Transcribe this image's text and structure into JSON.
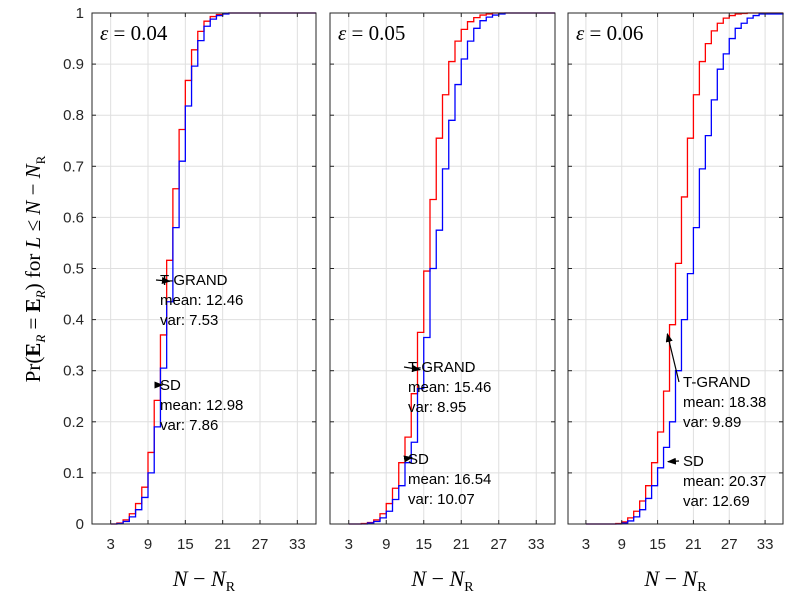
{
  "chart_data": {
    "type": "line",
    "step": true,
    "ylabel": "Pr(Ê_R̄ = E_R̄) for L ≤ N − N_R",
    "ylabel_parts": {
      "pr": "Pr(",
      "E": "E",
      "eq": " = ",
      "close": ")",
      "for": " for ",
      "L": "L",
      "leq": " ≤ ",
      "N": "N",
      "minus": " − ",
      "sub_R": "R",
      "sub_Rbar": "R"
    },
    "xlabel_parts": {
      "N": "N",
      "minus": " − ",
      "Nsym": "N",
      "sub": "R"
    },
    "y_ticks": [
      "0",
      "0.1",
      "0.2",
      "0.3",
      "0.4",
      "0.5",
      "0.6",
      "0.7",
      "0.8",
      "0.9",
      "1"
    ],
    "x_ticks": [
      "3",
      "9",
      "15",
      "21",
      "27",
      "33"
    ],
    "xlim": [
      0,
      36
    ],
    "ylim": [
      0,
      1
    ],
    "grid": true,
    "colors": {
      "tgrand": "#ff0000",
      "sd": "#0000ff",
      "axis": "#262626",
      "grid": "#dfdfdf"
    },
    "panels": [
      {
        "title": "ε = 0.04",
        "eps_symbol": "ε",
        "eps_value": " = 0.04",
        "series": [
          {
            "name": "T-GRAND",
            "color": "#ff0000",
            "x": [
              3,
              4,
              5,
              6,
              7,
              8,
              9,
              10,
              11,
              12,
              13,
              14,
              15,
              16,
              17,
              18,
              19,
              20,
              21,
              22,
              23,
              24,
              25,
              36
            ],
            "y": [
              0,
              0.002,
              0.008,
              0.02,
              0.04,
              0.072,
              0.14,
              0.242,
              0.37,
              0.516,
              0.656,
              0.772,
              0.868,
              0.928,
              0.964,
              0.984,
              0.993,
              0.997,
              0.999,
              1,
              1,
              1,
              1,
              1
            ]
          },
          {
            "name": "SD",
            "color": "#0000ff",
            "x": [
              3,
              4,
              5,
              6,
              7,
              8,
              9,
              10,
              11,
              12,
              13,
              14,
              15,
              16,
              17,
              18,
              19,
              20,
              21,
              22,
              23,
              24,
              25,
              36
            ],
            "y": [
              0,
              0.001,
              0.005,
              0.014,
              0.028,
              0.052,
              0.1,
              0.19,
              0.305,
              0.435,
              0.58,
              0.71,
              0.818,
              0.896,
              0.946,
              0.974,
              0.988,
              0.995,
              0.998,
              1,
              1,
              1,
              1,
              1
            ]
          }
        ],
        "annotations": [
          {
            "name": "T-GRAND",
            "lines": [
              "T-GRAND",
              "mean: 12.46",
              "var: 7.53"
            ],
            "point": [
              12.2,
              0.475
            ]
          },
          {
            "name": "SD",
            "lines": [
              "SD",
              "mean: 12.98",
              "var: 7.86"
            ],
            "point": [
              11.0,
              0.272
            ]
          }
        ]
      },
      {
        "title": "ε = 0.05",
        "eps_symbol": "ε",
        "eps_value": " = 0.05",
        "series": [
          {
            "name": "T-GRAND",
            "color": "#ff0000",
            "x": [
              3,
              4,
              5,
              6,
              7,
              8,
              9,
              10,
              11,
              12,
              13,
              14,
              15,
              16,
              17,
              18,
              19,
              20,
              21,
              22,
              23,
              24,
              25,
              26,
              27,
              28,
              36
            ],
            "y": [
              0,
              0,
              0.001,
              0.003,
              0.008,
              0.02,
              0.04,
              0.07,
              0.12,
              0.17,
              0.255,
              0.375,
              0.495,
              0.635,
              0.755,
              0.84,
              0.905,
              0.945,
              0.968,
              0.983,
              0.991,
              0.996,
              0.998,
              1,
              1,
              1,
              1
            ]
          },
          {
            "name": "SD",
            "color": "#0000ff",
            "x": [
              3,
              4,
              5,
              6,
              7,
              8,
              9,
              10,
              11,
              12,
              13,
              14,
              15,
              16,
              17,
              18,
              19,
              20,
              21,
              22,
              23,
              24,
              25,
              26,
              27,
              28,
              36
            ],
            "y": [
              0,
              0,
              0,
              0.002,
              0.005,
              0.012,
              0.025,
              0.048,
              0.075,
              0.12,
              0.16,
              0.265,
              0.365,
              0.5,
              0.575,
              0.695,
              0.79,
              0.86,
              0.91,
              0.945,
              0.97,
              0.985,
              0.992,
              0.996,
              0.998,
              1,
              1
            ]
          }
        ],
        "annotations": [
          {
            "name": "T-GRAND",
            "lines": [
              "T-GRAND",
              "mean: 15.46",
              "var: 8.95"
            ],
            "point": [
              14.1,
              0.302
            ]
          },
          {
            "name": "SD",
            "lines": [
              "SD",
              "mean: 16.54",
              "var: 10.07"
            ],
            "point": [
              12.8,
              0.13
            ]
          }
        ]
      },
      {
        "title": "ε = 0.06",
        "eps_symbol": "ε",
        "eps_value": " = 0.06",
        "series": [
          {
            "name": "T-GRAND",
            "color": "#ff0000",
            "x": [
              3,
              4,
              5,
              6,
              7,
              8,
              9,
              10,
              11,
              12,
              13,
              14,
              15,
              16,
              17,
              18,
              19,
              20,
              21,
              22,
              23,
              24,
              25,
              26,
              27,
              28,
              29,
              30,
              31,
              32,
              36
            ],
            "y": [
              0,
              0,
              0,
              0,
              0,
              0.001,
              0.004,
              0.012,
              0.025,
              0.045,
              0.075,
              0.12,
              0.18,
              0.26,
              0.39,
              0.51,
              0.64,
              0.755,
              0.84,
              0.905,
              0.94,
              0.965,
              0.98,
              0.99,
              0.995,
              0.998,
              0.999,
              1,
              1,
              1,
              1
            ]
          },
          {
            "name": "SD",
            "color": "#0000ff",
            "x": [
              3,
              4,
              5,
              6,
              7,
              8,
              9,
              10,
              11,
              12,
              13,
              14,
              15,
              16,
              17,
              18,
              19,
              20,
              21,
              22,
              23,
              24,
              25,
              26,
              27,
              28,
              29,
              30,
              31,
              32,
              36
            ],
            "y": [
              0,
              0,
              0,
              0,
              0,
              0,
              0.002,
              0.006,
              0.014,
              0.028,
              0.05,
              0.075,
              0.11,
              0.15,
              0.2,
              0.3,
              0.4,
              0.49,
              0.58,
              0.695,
              0.76,
              0.83,
              0.89,
              0.92,
              0.95,
              0.97,
              0.98,
              0.99,
              0.995,
              0.998,
              1
            ]
          }
        ],
        "annotations": [
          {
            "name": "T-GRAND",
            "lines": [
              "T-GRAND",
              "mean: 18.38",
              "var: 9.89"
            ],
            "point": [
              16.3,
              0.372
            ]
          },
          {
            "name": "SD",
            "lines": [
              "SD",
              "mean: 20.37",
              "var: 12.69"
            ],
            "point": [
              16.4,
              0.122
            ]
          }
        ]
      }
    ]
  }
}
